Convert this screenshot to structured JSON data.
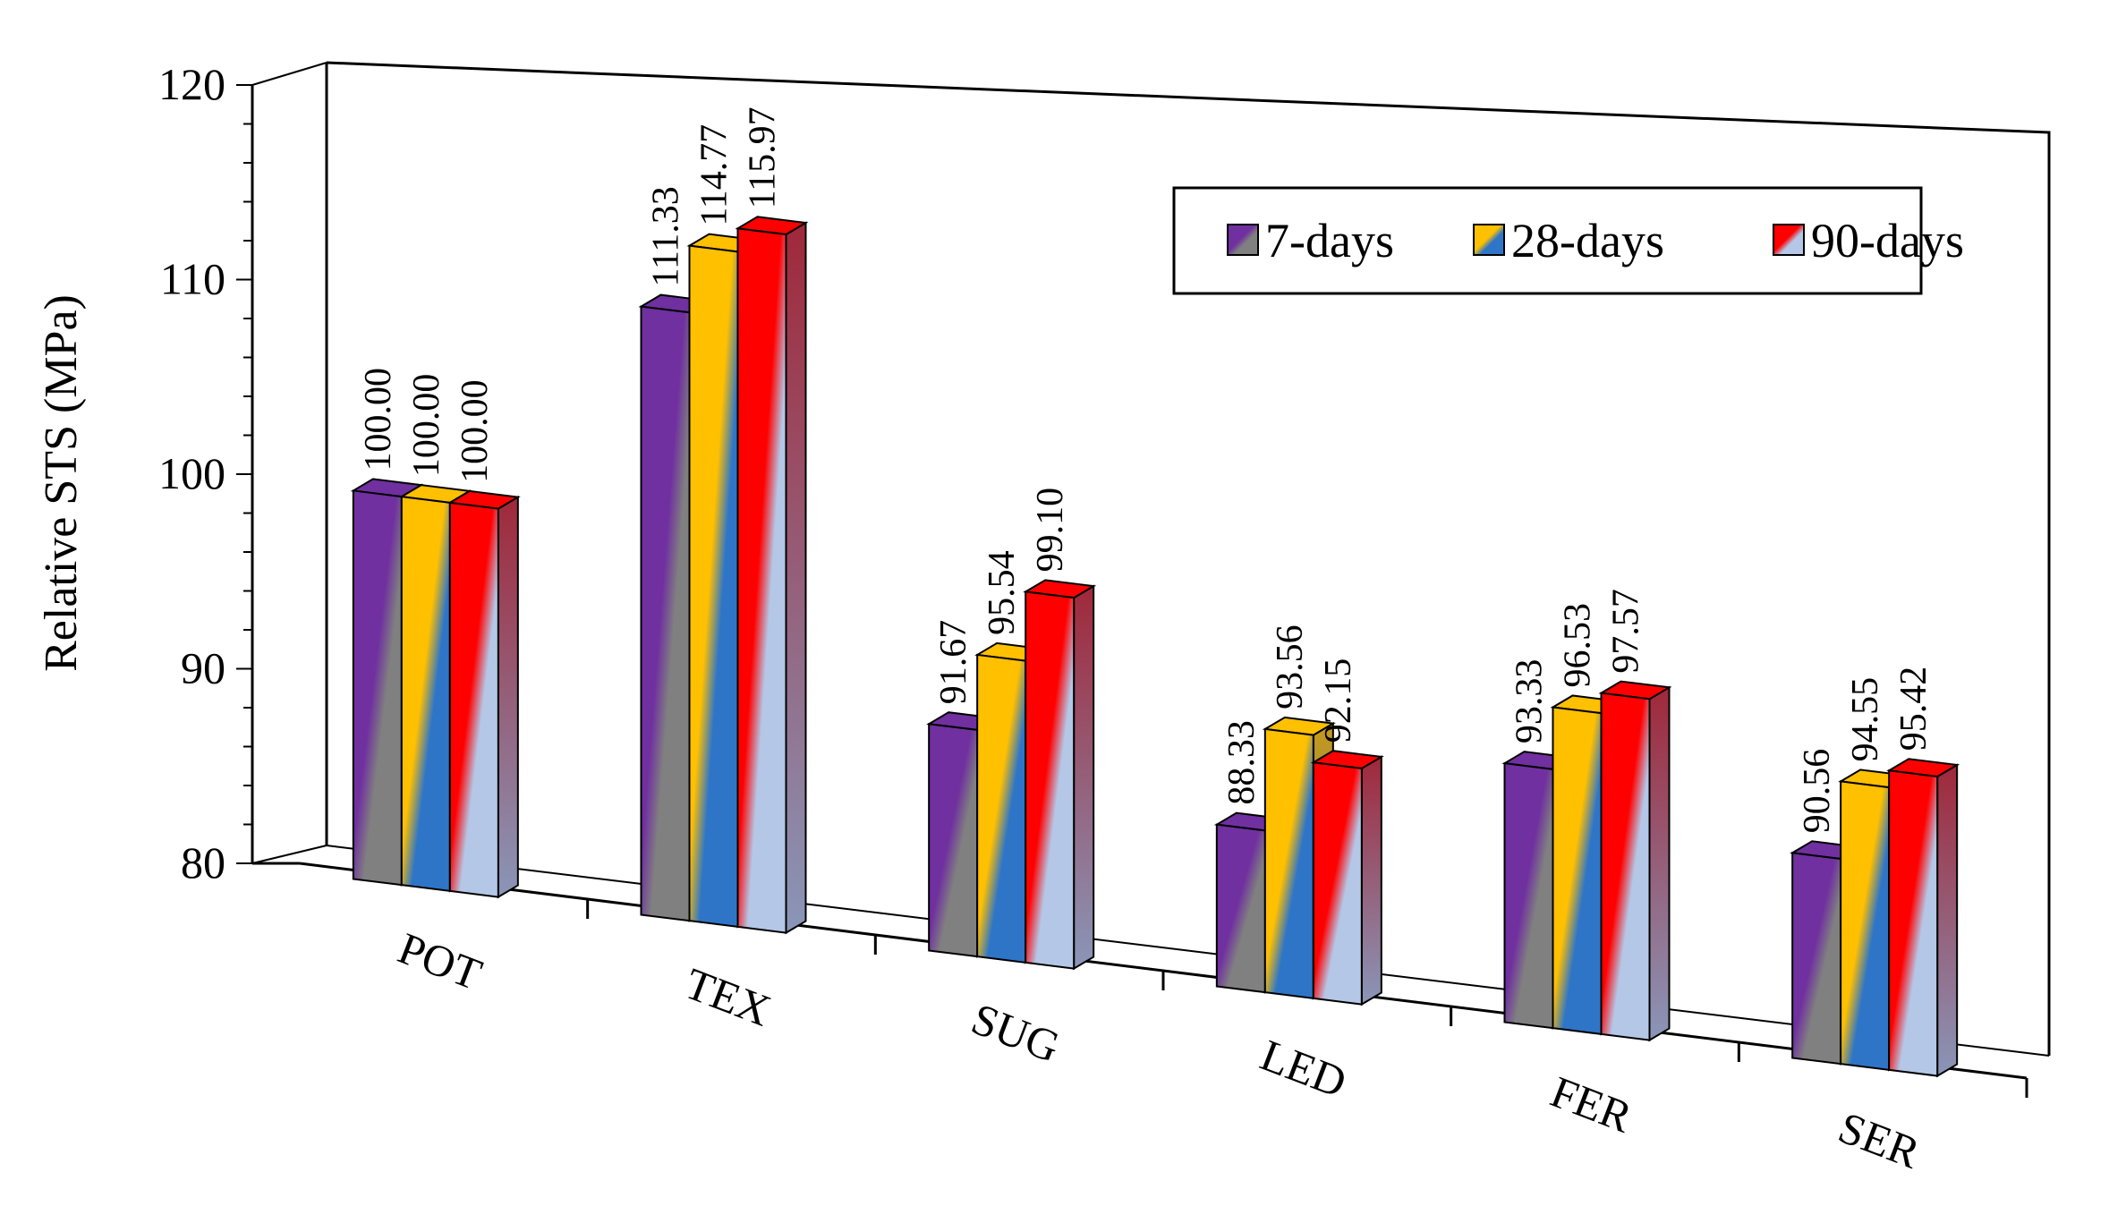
{
  "chart_data": {
    "type": "bar",
    "title": "",
    "xlabel": "",
    "ylabel": "Relative STS (MPa)",
    "ylim": [
      80,
      120
    ],
    "yticks": [
      80,
      90,
      100,
      110,
      120
    ],
    "categories": [
      "POT",
      "TEX",
      "SUG",
      "LED",
      "FER",
      "SER"
    ],
    "series": [
      {
        "name": "7-days",
        "values": [
          100.0,
          111.33,
          91.67,
          88.33,
          93.33,
          90.56
        ],
        "color_top": "#7030a0",
        "color_bottom": "#808080"
      },
      {
        "name": "28-days",
        "values": [
          100.0,
          114.77,
          95.54,
          93.56,
          96.53,
          94.55
        ],
        "color_top": "#ffc000",
        "color_bottom": "#2e75c8"
      },
      {
        "name": "90-days",
        "values": [
          100.0,
          115.97,
          99.1,
          92.15,
          97.57,
          95.42
        ],
        "color_top": "#ff0000",
        "color_bottom": "#b4c7e7"
      }
    ],
    "legend_position": "top-right",
    "grid": false
  }
}
